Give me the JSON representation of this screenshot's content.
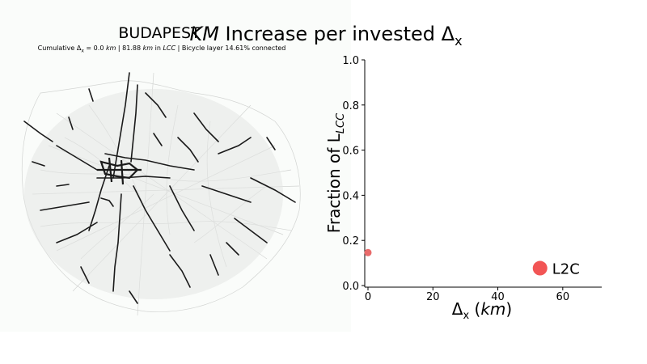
{
  "map_panel": {
    "title": "BUDAPEST",
    "subtitle_prefix": "Cumulative Δ",
    "subtitle_prefix_sub": "x",
    "subtitle_value1": " = 0.0 ",
    "subtitle_unit1": "km",
    "subtitle_sep1": " | 81.88 ",
    "subtitle_unit2": "km",
    "subtitle_in": " in ",
    "subtitle_lcc": "LCC",
    "subtitle_tail": " | Bicycle layer 14.61% connected"
  },
  "chart_title": {
    "km": "KM",
    "rest": " Increase per invested Δ",
    "sub": "x"
  },
  "chart_data": {
    "type": "scatter",
    "title": "KM Increase per invested Δx",
    "xlabel_main": "Δ",
    "xlabel_sub": "x",
    "xlabel_unit": "km",
    "ylabel_main": "Fraction of L",
    "ylabel_sub": "LCC",
    "xlim": [
      0,
      70
    ],
    "ylim": [
      0,
      1.0
    ],
    "xticks": [
      0,
      20,
      40,
      60
    ],
    "xtick_labels": [
      "0",
      "20",
      "40",
      "60"
    ],
    "yticks": [
      0.0,
      0.2,
      0.4,
      0.6,
      0.8,
      1.0
    ],
    "ytick_labels": [
      "0.0",
      "0.2",
      "0.4",
      "0.6",
      "0.8",
      "1.0"
    ],
    "grid": false,
    "points": [
      {
        "x": 0,
        "y": 0.146,
        "size": "small",
        "color": "#e86b6b"
      },
      {
        "x": 53,
        "y": 0.077,
        "size": "large",
        "color": "#f25555"
      }
    ],
    "legend_label": "L2C"
  },
  "colors": {
    "accent": "#f25555",
    "road": "#1a1a1a"
  }
}
